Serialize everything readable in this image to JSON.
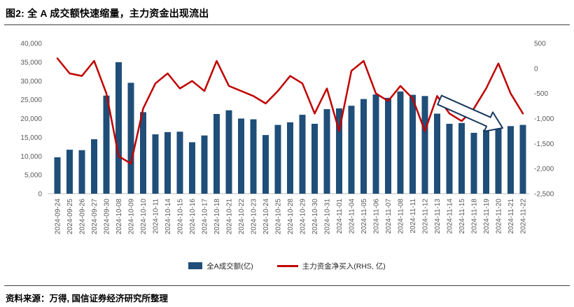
{
  "title": "图2: 全 A 成交额快速缩量，主力资金出现流出",
  "footer": {
    "source": "资料来源：万得, 国信证券经济研究所整理"
  },
  "chart_data": {
    "type": "bar+line combo",
    "categories": [
      "2024-09-24",
      "2024-09-25",
      "2024-09-26",
      "2024-09-27",
      "2024-09-30",
      "2024-10-08",
      "2024-10-09",
      "2024-10-10",
      "2024-10-11",
      "2024-10-14",
      "2024-10-15",
      "2024-10-16",
      "2024-10-17",
      "2024-10-18",
      "2024-10-21",
      "2024-10-22",
      "2024-10-23",
      "2024-10-24",
      "2024-10-25",
      "2024-10-28",
      "2024-10-29",
      "2024-10-30",
      "2024-10-31",
      "2024-11-01",
      "2024-11-04",
      "2024-11-05",
      "2024-11-06",
      "2024-11-07",
      "2024-11-08",
      "2024-11-11",
      "2024-11-12",
      "2024-11-13",
      "2024-11-14",
      "2024-11-15",
      "2024-11-18",
      "2024-11-19",
      "2024-11-20",
      "2024-11-21",
      "2024-11-22"
    ],
    "series": [
      {
        "name": "全A成交额(亿)",
        "type": "bar",
        "axis": "left",
        "color": "#1F4E79",
        "values": [
          9700,
          11700,
          11600,
          14500,
          26100,
          35000,
          29500,
          21700,
          15800,
          16400,
          16500,
          13700,
          15500,
          21200,
          22200,
          20000,
          19800,
          15600,
          18300,
          19000,
          21000,
          18600,
          22500,
          22700,
          23400,
          25200,
          26400,
          25500,
          27200,
          26300,
          26000,
          21300,
          18600,
          18800,
          16200,
          17000,
          17800,
          18000,
          18300
        ]
      },
      {
        "name": "主力资金净买入(RHS, 亿)",
        "type": "line",
        "axis": "right",
        "color": "#C00000",
        "values": [
          200,
          -100,
          -150,
          150,
          -500,
          -1750,
          -1900,
          -800,
          -300,
          -100,
          -400,
          -250,
          -450,
          150,
          -350,
          -450,
          -550,
          -700,
          -450,
          -150,
          -300,
          -900,
          -400,
          -1250,
          -50,
          150,
          -500,
          -650,
          -350,
          -600,
          -1250,
          -550,
          -900,
          -1050,
          -800,
          -400,
          100,
          -500,
          -900
        ]
      }
    ],
    "left_axis": {
      "min": 0,
      "max": 40000,
      "ticks": [
        "40,000",
        "35,000",
        "30,000",
        "25,000",
        "20,000",
        "15,000",
        "10,000",
        "5,000",
        "0"
      ]
    },
    "right_axis": {
      "min": -2500,
      "max": 500,
      "ticks": [
        "500",
        "0",
        "-500",
        "-1,000",
        "-1,500",
        "-2,000",
        "-2,500"
      ]
    },
    "grid": false,
    "legend_position": "bottom-center",
    "annotation": {
      "type": "down-right-block-arrow",
      "color": "#17375D"
    }
  }
}
